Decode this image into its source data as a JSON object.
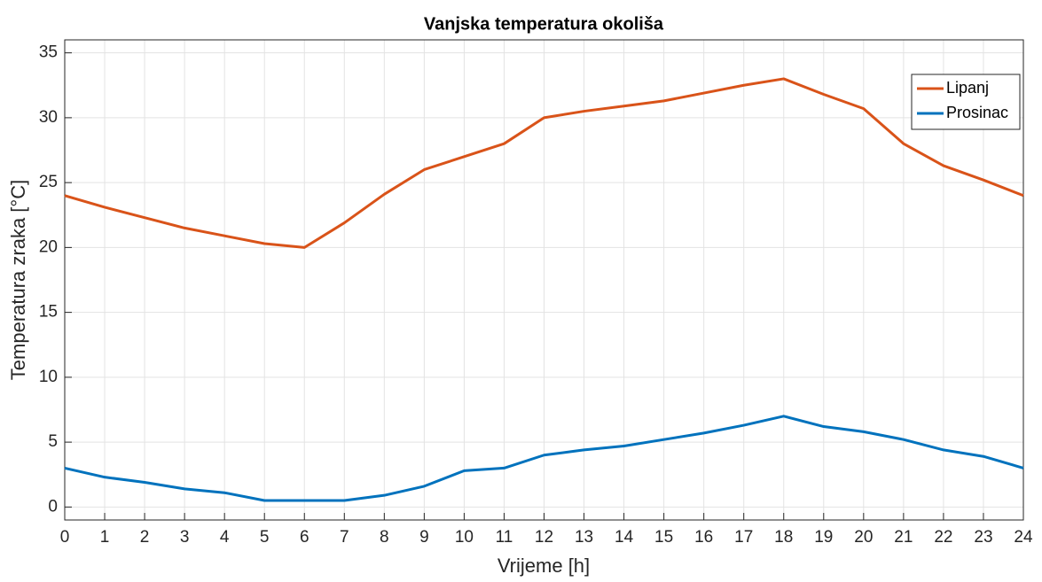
{
  "chart_data": {
    "type": "line",
    "title": "Vanjska temperatura okoliša",
    "xlabel": "Vrijeme [h]",
    "ylabel": "Temperatura zraka [°C]",
    "x": [
      0,
      1,
      2,
      3,
      4,
      5,
      6,
      7,
      8,
      9,
      10,
      11,
      12,
      13,
      14,
      15,
      16,
      17,
      18,
      19,
      20,
      21,
      22,
      23,
      24
    ],
    "series": [
      {
        "name": "Lipanj",
        "color": "#d95319",
        "values": [
          24,
          23.1,
          22.3,
          21.5,
          20.9,
          20.3,
          20,
          21.9,
          24.1,
          26,
          27,
          28,
          30,
          30.5,
          30.9,
          31.3,
          31.9,
          32.5,
          33,
          31.8,
          30.7,
          28,
          26.3,
          25.2,
          24
        ]
      },
      {
        "name": "Prosinac",
        "color": "#0072bd",
        "values": [
          3,
          2.3,
          1.9,
          1.4,
          1.1,
          0.5,
          0.5,
          0.5,
          0.9,
          1.6,
          2.8,
          3,
          4,
          4.4,
          4.7,
          5.2,
          5.7,
          6.3,
          7,
          6.2,
          5.8,
          5.2,
          4.4,
          3.9,
          3
        ]
      }
    ],
    "xlim": [
      0,
      24
    ],
    "xticks": [
      0,
      1,
      2,
      3,
      4,
      5,
      6,
      7,
      8,
      9,
      10,
      11,
      12,
      13,
      14,
      15,
      16,
      17,
      18,
      19,
      20,
      21,
      22,
      23,
      24
    ],
    "ylim": [
      -1,
      36
    ],
    "yticks": [
      0,
      5,
      10,
      15,
      20,
      25,
      30,
      35
    ],
    "grid": true,
    "legend": "upper right"
  }
}
